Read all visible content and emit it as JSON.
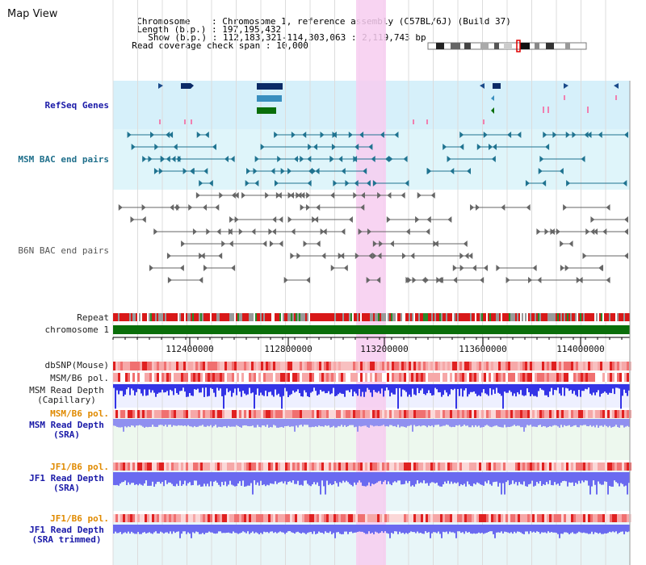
{
  "page": {
    "title": "Map View"
  },
  "info": {
    "chromosome_key": "Chromosome",
    "chromosome_val": "Chromosome 1, reference assembly (C57BL/6J) (Build 37)",
    "length_key": "Length (b.p.)",
    "length_val": "197,195,432",
    "show_key": "Show (b.p.)",
    "show_val": "112,183,321-114,303,063 : 2,119,743 bp",
    "span_key": "Read coverage check span",
    "span_val": "10,000"
  },
  "tracks": {
    "refseq": "RefSeq Genes",
    "msm_bac": "MSM BAC end pairs",
    "b6n_bac": "B6N BAC end pairs",
    "repeat": "Repeat",
    "chrom": "chromosome 1",
    "dbsnp": "dbSNP(Mouse)",
    "msm_b6_pol": "MSM/B6 pol.",
    "msm_depth_cap_1": "MSM Read Depth",
    "msm_depth_cap_2": "(Capillary)",
    "msm_b6_pol2": "MSM/B6 pol.",
    "msm_depth_sra_1": "MSM Read Depth",
    "msm_depth_sra_2": "(SRA)",
    "jf1_b6_pol": "JF1/B6 pol.",
    "jf1_depth_sra_1": "JF1 Read Depth",
    "jf1_depth_sra_2": "(SRA)",
    "jf1_b6_pol2": "JF1/B6 pol.",
    "jf1_depth_trim_1": "JF1 Read Depth",
    "jf1_depth_trim_2": "(SRA trimmed)"
  },
  "axis": {
    "ticks": [
      "112400000",
      "112800000",
      "113200000",
      "113600000",
      "114000000"
    ]
  },
  "colors": {
    "refseq_bg": "#d6f0fa",
    "msm_bg": "#dff5fa",
    "highlight": "#f7cdf0",
    "chrom_bar": "#0a6e0a",
    "depth_blue": "#3a3ae8",
    "depth_light": "#8c8cf0",
    "pol_red": "#e83030",
    "gene_navy": "#0b2a66",
    "gene_teal": "#3a8fbf",
    "gene_green": "#0a6e0a"
  }
}
